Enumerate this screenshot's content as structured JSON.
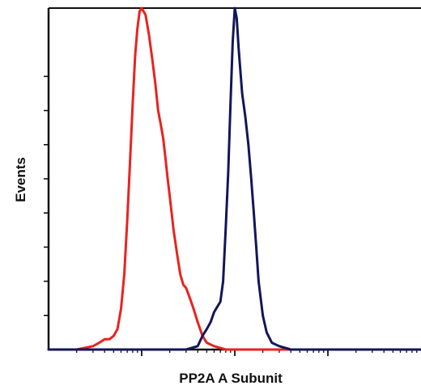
{
  "chart_data": {
    "type": "line",
    "title": "",
    "xlabel": "PP2A A Subunit",
    "ylabel": "Events",
    "x_scale": "log",
    "xlim": [
      1,
      10000
    ],
    "ylim": [
      0,
      100
    ],
    "grid": false,
    "legend": "none",
    "x_major_ticks": [
      10,
      100,
      1000
    ],
    "x_minor_ticks_per_decade": 8,
    "y_ticks": [
      10,
      20,
      30,
      40,
      50,
      60,
      70,
      80
    ],
    "series": [
      {
        "color": "#e8231f",
        "x": [
          1,
          2,
          3,
          3.5,
          4,
          4.5,
          5,
          5.5,
          6,
          6.5,
          7,
          7.5,
          8,
          8.5,
          9,
          9.5,
          10,
          11,
          12,
          13,
          14,
          15,
          16,
          17,
          18,
          19,
          20,
          22,
          24,
          26,
          28,
          30,
          33,
          36,
          40,
          45,
          50,
          60,
          80,
          100,
          150,
          300,
          1000,
          10000
        ],
        "y": [
          0,
          0,
          1,
          2,
          3,
          3,
          4,
          6,
          12,
          22,
          38,
          55,
          72,
          86,
          94,
          99,
          100,
          98,
          92,
          85,
          78,
          70,
          66,
          62,
          56,
          50,
          45,
          35,
          28,
          22,
          19,
          18,
          15,
          12,
          8,
          4,
          2,
          1,
          0,
          0,
          0,
          0,
          0,
          0
        ]
      },
      {
        "color": "#14155a",
        "x": [
          1,
          10,
          30,
          40,
          45,
          50,
          55,
          60,
          70,
          75,
          80,
          85,
          90,
          95,
          100,
          105,
          110,
          120,
          130,
          140,
          150,
          160,
          170,
          180,
          200,
          220,
          250,
          300,
          400,
          600,
          1000,
          10000
        ],
        "y": [
          0,
          0,
          0,
          1,
          4,
          6,
          8,
          11,
          14,
          20,
          36,
          52,
          72,
          90,
          100,
          97,
          88,
          75,
          68,
          60,
          50,
          40,
          30,
          20,
          10,
          5,
          2,
          1,
          0,
          0,
          0,
          0
        ]
      }
    ]
  }
}
